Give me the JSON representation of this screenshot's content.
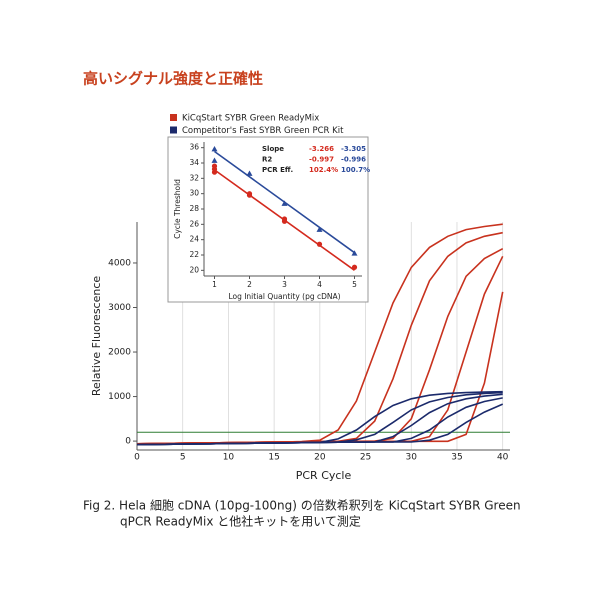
{
  "header": {
    "title": "高いシグナル強度と正確性"
  },
  "chart_data": [
    {
      "type": "line",
      "x_label": "PCR Cycle",
      "y_label": "Relative Fluorescence",
      "x": [
        0,
        2,
        4,
        6,
        8,
        10,
        12,
        14,
        16,
        18,
        20,
        22,
        24,
        26,
        28,
        30,
        32,
        34,
        36,
        38,
        40
      ],
      "xlim": [
        0,
        40.8
      ],
      "ylim": [
        -200,
        4920
      ],
      "xticks": [
        0,
        5,
        10,
        15,
        20,
        25,
        30,
        35,
        40
      ],
      "yticks": [
        0,
        1000,
        2000,
        3000,
        4000
      ],
      "grid": true,
      "threshold": 200,
      "threshold_color": "#2e7d32",
      "series": [
        {
          "name": "KiCqStart SYBR Green ReadyMix",
          "color": "#c8321e",
          "curves": [
            [
              -60,
              -55,
              -50,
              -45,
              -40,
              -35,
              -30,
              -25,
              -20,
              -10,
              20,
              250,
              900,
              2000,
              3100,
              3900,
              4350,
              4600,
              4750,
              4820,
              4870
            ],
            [
              -60,
              -55,
              -50,
              -45,
              -40,
              -35,
              -30,
              -25,
              -20,
              -15,
              -10,
              -5,
              60,
              450,
              1400,
              2600,
              3600,
              4150,
              4450,
              4600,
              4680
            ],
            [
              -60,
              -55,
              -50,
              -45,
              -40,
              -35,
              -30,
              -25,
              -20,
              -15,
              -10,
              -8,
              -5,
              0,
              60,
              500,
              1600,
              2800,
              3700,
              4100,
              4320
            ],
            [
              -60,
              -55,
              -50,
              -45,
              -40,
              -35,
              -30,
              -25,
              -20,
              -15,
              -10,
              -8,
              -6,
              -5,
              -5,
              -5,
              100,
              700,
              2000,
              3300,
              4150
            ],
            [
              -60,
              -55,
              -50,
              -45,
              -40,
              -35,
              -30,
              -25,
              -20,
              -15,
              -10,
              -8,
              -6,
              -5,
              -5,
              -5,
              -5,
              -5,
              150,
              1300,
              3350
            ]
          ]
        },
        {
          "name": "Competitor's Fast SYBR Green PCR Kit",
          "color": "#1b2a6b",
          "curves": [
            [
              -80,
              -75,
              -70,
              -65,
              -60,
              -55,
              -50,
              -45,
              -40,
              -35,
              -30,
              50,
              250,
              550,
              800,
              950,
              1030,
              1070,
              1090,
              1100,
              1110
            ],
            [
              -80,
              -75,
              -70,
              -65,
              -60,
              -55,
              -50,
              -45,
              -40,
              -35,
              -30,
              -25,
              30,
              150,
              420,
              700,
              880,
              980,
              1040,
              1070,
              1090
            ],
            [
              -80,
              -75,
              -70,
              -65,
              -60,
              -55,
              -50,
              -45,
              -40,
              -35,
              -30,
              -25,
              -25,
              -20,
              100,
              350,
              640,
              840,
              950,
              1010,
              1050
            ],
            [
              -80,
              -75,
              -70,
              -65,
              -60,
              -55,
              -50,
              -45,
              -40,
              -35,
              -30,
              -25,
              -25,
              -20,
              -20,
              60,
              250,
              540,
              760,
              890,
              970
            ],
            [
              -80,
              -75,
              -70,
              -65,
              -60,
              -55,
              -50,
              -45,
              -40,
              -35,
              -30,
              -25,
              -25,
              -20,
              -20,
              -20,
              20,
              150,
              420,
              650,
              830
            ]
          ]
        }
      ]
    },
    {
      "type": "scatter",
      "x_label": "Log Initial Quantity (pg cDNA)",
      "y_label": "Cycle Threshold",
      "xlim": [
        0.7,
        5.3
      ],
      "ylim": [
        19,
        37
      ],
      "xticks": [
        1,
        2,
        3,
        4,
        5
      ],
      "yticks": [
        20,
        22,
        24,
        26,
        28,
        30,
        32,
        34,
        36
      ],
      "series": [
        {
          "color": "#d42a1e",
          "marker": "circle",
          "x": [
            1,
            1,
            1,
            2,
            2,
            3,
            3,
            4,
            5
          ],
          "values": [
            32.8,
            33.2,
            33.6,
            29.8,
            30.0,
            26.4,
            26.7,
            23.4,
            20.4
          ],
          "fit_line": {
            "x": [
              1,
              5
            ],
            "values": [
              33.1,
              20.0
            ]
          }
        },
        {
          "color": "#2a4a9a",
          "marker": "triangle",
          "x": [
            1,
            1,
            2,
            3,
            4,
            5
          ],
          "values": [
            35.8,
            34.3,
            32.6,
            28.7,
            25.3,
            22.2
          ],
          "fit_line": {
            "x": [
              1,
              5
            ],
            "values": [
              35.5,
              22.3
            ]
          }
        }
      ],
      "stats": {
        "rows": [
          [
            "Slope",
            "-3.266",
            "-3.305"
          ],
          [
            "R2",
            "-0.997",
            "-0.996"
          ],
          [
            "PCR Eff.",
            "102.4%",
            "100.7%"
          ]
        ]
      }
    }
  ],
  "caption": {
    "lines": [
      "Fig 2. Hela 細胞 cDNA (10pg-100ng) の倍数希釈列を KiCqStart SYBR Green",
      "qPCR ReadyMix と他社キットを用いて測定"
    ]
  }
}
